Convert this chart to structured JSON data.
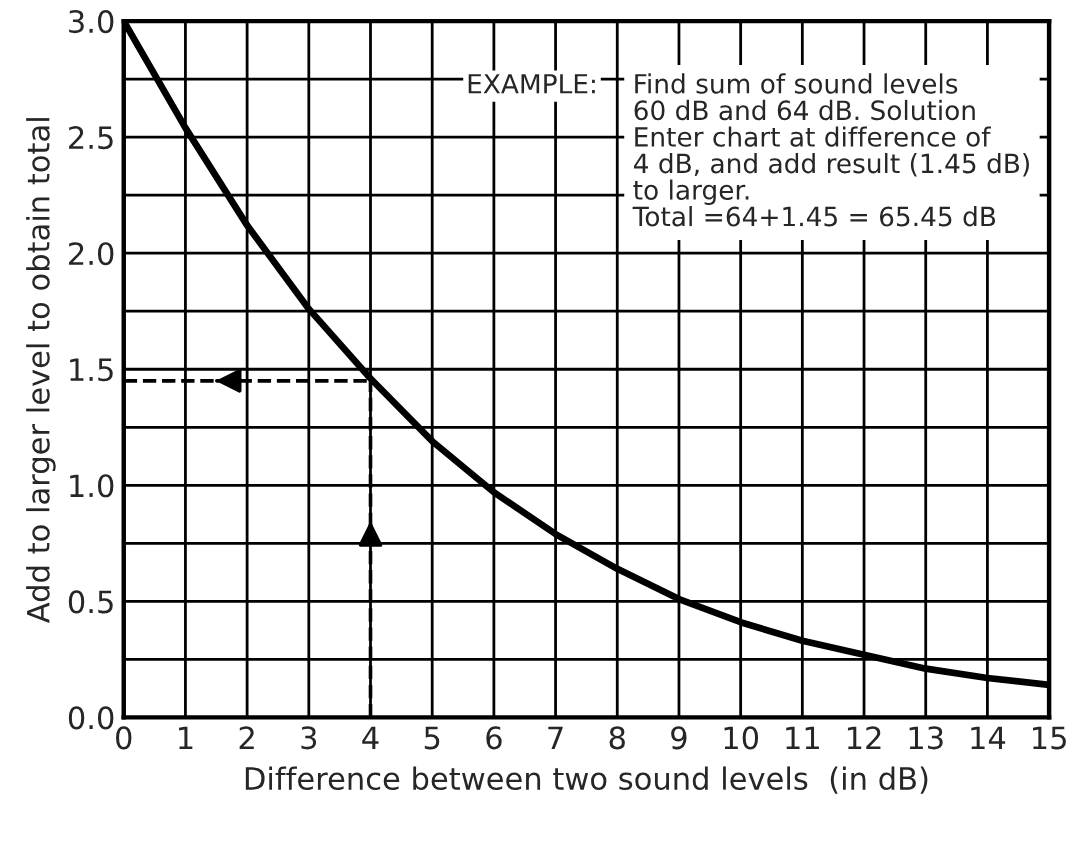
{
  "chart_data": {
    "type": "line",
    "xlabel": "Difference between two sound levels  (in dB)",
    "ylabel": "Add to larger level to obtain total",
    "x": [
      0,
      1,
      2,
      3,
      4,
      5,
      6,
      7,
      8,
      9,
      10,
      11,
      12,
      13,
      14,
      15
    ],
    "series": [
      {
        "color": "#000000",
        "values": [
          3.0,
          2.54,
          2.12,
          1.76,
          1.46,
          1.19,
          0.97,
          0.79,
          0.64,
          0.51,
          0.41,
          0.33,
          0.27,
          0.21,
          0.17,
          0.14
        ]
      }
    ],
    "xlim": [
      0,
      15
    ],
    "ylim": [
      0,
      3.0
    ],
    "xticks": [
      0,
      1,
      2,
      3,
      4,
      5,
      6,
      7,
      8,
      9,
      10,
      11,
      12,
      13,
      14,
      15
    ],
    "yticks": [
      {
        "value": 0,
        "label": "0.0"
      },
      {
        "value": 0.25,
        "label": null
      },
      {
        "value": 0.5,
        "label": "0.5"
      },
      {
        "value": 0.75,
        "label": null
      },
      {
        "value": 1,
        "label": "1.0"
      },
      {
        "value": 1.25,
        "label": null
      },
      {
        "value": 1.5,
        "label": "1.5"
      },
      {
        "value": 1.75,
        "label": null
      },
      {
        "value": 2,
        "label": "2.0"
      },
      {
        "value": 2.25,
        "label": null
      },
      {
        "value": 2.5,
        "label": "2.5"
      },
      {
        "value": 2.75,
        "label": null
      },
      {
        "value": 3,
        "label": "3.0"
      }
    ],
    "grid": true,
    "marker": "none",
    "line_style": "solid",
    "ref_lines": [
      {
        "axis": "x",
        "value": 4,
        "line_style": "dashed",
        "color": "#000000"
      },
      {
        "axis": "y",
        "value": 1.45,
        "line_style": "dashed",
        "color": "#000000"
      }
    ],
    "annotations": [
      "EXAMPLE:",
      "Find sum of sound levels\n60 dB and 64 dB. Solution\nEnter chart at difference of\n4 dB, and add result (1.45 dB)\nto larger.\nTotal =64+1.45 = 65.45 dB"
    ]
  }
}
